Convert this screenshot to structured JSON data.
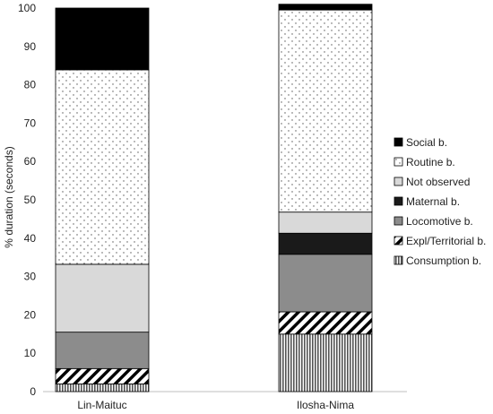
{
  "chart_data": {
    "type": "bar",
    "stacked": true,
    "ylabel": "% duration (seconds)",
    "xlabel": "",
    "ylim": [
      0,
      100
    ],
    "yticks": [
      0,
      10,
      20,
      30,
      40,
      50,
      60,
      70,
      80,
      90,
      100
    ],
    "categories": [
      "Lin-Maituc",
      "Ilosha-Nima"
    ],
    "grid": false,
    "legend_position": "right",
    "series": [
      {
        "name": "Consumption b.",
        "pattern": "vertical-lines",
        "values": [
          2,
          15
        ]
      },
      {
        "name": "Expl/Territorial b.",
        "pattern": "diagonal-hatch",
        "values": [
          4,
          5.8
        ]
      },
      {
        "name": "Locomotive b.",
        "pattern": "solid",
        "color": "#8c8c8c",
        "values": [
          9.5,
          15
        ]
      },
      {
        "name": "Maternal b.",
        "pattern": "solid",
        "color": "#1a1a1a",
        "values": [
          0,
          5.5
        ]
      },
      {
        "name": "Not observed",
        "pattern": "solid",
        "color": "#d9d9d9",
        "values": [
          17.7,
          5.5
        ]
      },
      {
        "name": "Routine b.",
        "pattern": "dots",
        "values": [
          50.7,
          52.7
        ]
      },
      {
        "name": "Social b.",
        "pattern": "solid",
        "color": "#000000",
        "values": [
          16.1,
          1.5
        ]
      }
    ]
  }
}
